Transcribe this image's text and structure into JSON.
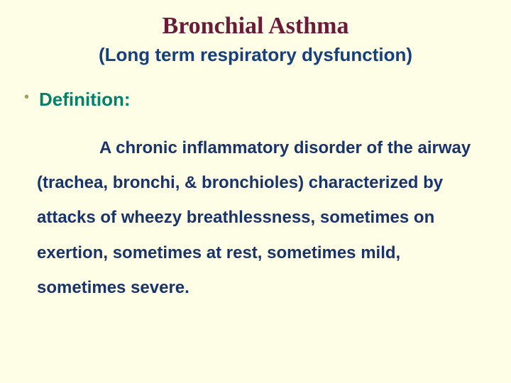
{
  "colors": {
    "background": "#fefde5",
    "title": "#6b1a3a",
    "subtitle": "#153f7d",
    "bullet_dot": "#9aa05a",
    "bullet_label": "#00826a",
    "body_text": "#18346a"
  },
  "typography": {
    "title_fontsize": 34,
    "subtitle_fontsize": 26,
    "bullet_label_fontsize": 26,
    "body_fontsize": 24,
    "body_line_height": 2.05
  },
  "title": "Bronchial Asthma",
  "subtitle": "(Long term respiratory dysfunction)",
  "bullet": {
    "label": "Definition:"
  },
  "definition_text": "A chronic inflammatory disorder of the airway (trachea, bronchi, & bronchioles) characterized by attacks of wheezy breathlessness, sometimes on exertion, sometimes at rest, sometimes mild, sometimes severe."
}
